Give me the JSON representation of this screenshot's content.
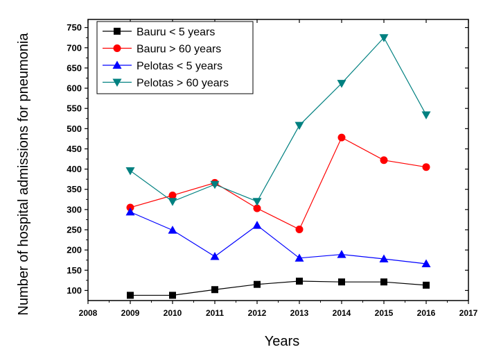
{
  "chart_data": {
    "type": "line",
    "xlabel": "Years",
    "ylabel": "Number of hospital admissions for pneumonia",
    "xlim": [
      2008,
      2017
    ],
    "ylim": [
      75,
      770
    ],
    "x_ticks": [
      2008,
      2009,
      2010,
      2011,
      2012,
      2013,
      2014,
      2015,
      2016,
      2017
    ],
    "y_ticks": [
      100,
      150,
      200,
      250,
      300,
      350,
      400,
      450,
      500,
      550,
      600,
      650,
      700,
      750
    ],
    "legend_position": "top-left",
    "grid": false,
    "x": [
      2009,
      2010,
      2011,
      2012,
      2013,
      2014,
      2015,
      2016
    ],
    "series": [
      {
        "name": "Bauru < 5 years",
        "marker": "square",
        "color": "#000000",
        "line_color": "#000000",
        "values": [
          88,
          88,
          102,
          115,
          123,
          121,
          121,
          113
        ]
      },
      {
        "name": "Bauru > 60 years",
        "marker": "circle",
        "color": "#ff0000",
        "line_color": "#ff0000",
        "values": [
          305,
          335,
          366,
          303,
          251,
          478,
          422,
          405
        ]
      },
      {
        "name": "Pelotas < 5 years",
        "marker": "triangle-up",
        "color": "#0000ff",
        "line_color": "#0000ff",
        "values": [
          294,
          249,
          184,
          261,
          180,
          189,
          178,
          166
        ]
      },
      {
        "name": "Pelotas > 60 years",
        "marker": "triangle-down",
        "color": "#008080",
        "line_color": "#008080",
        "values": [
          396,
          320,
          362,
          320,
          508,
          612,
          725,
          534
        ]
      }
    ]
  }
}
